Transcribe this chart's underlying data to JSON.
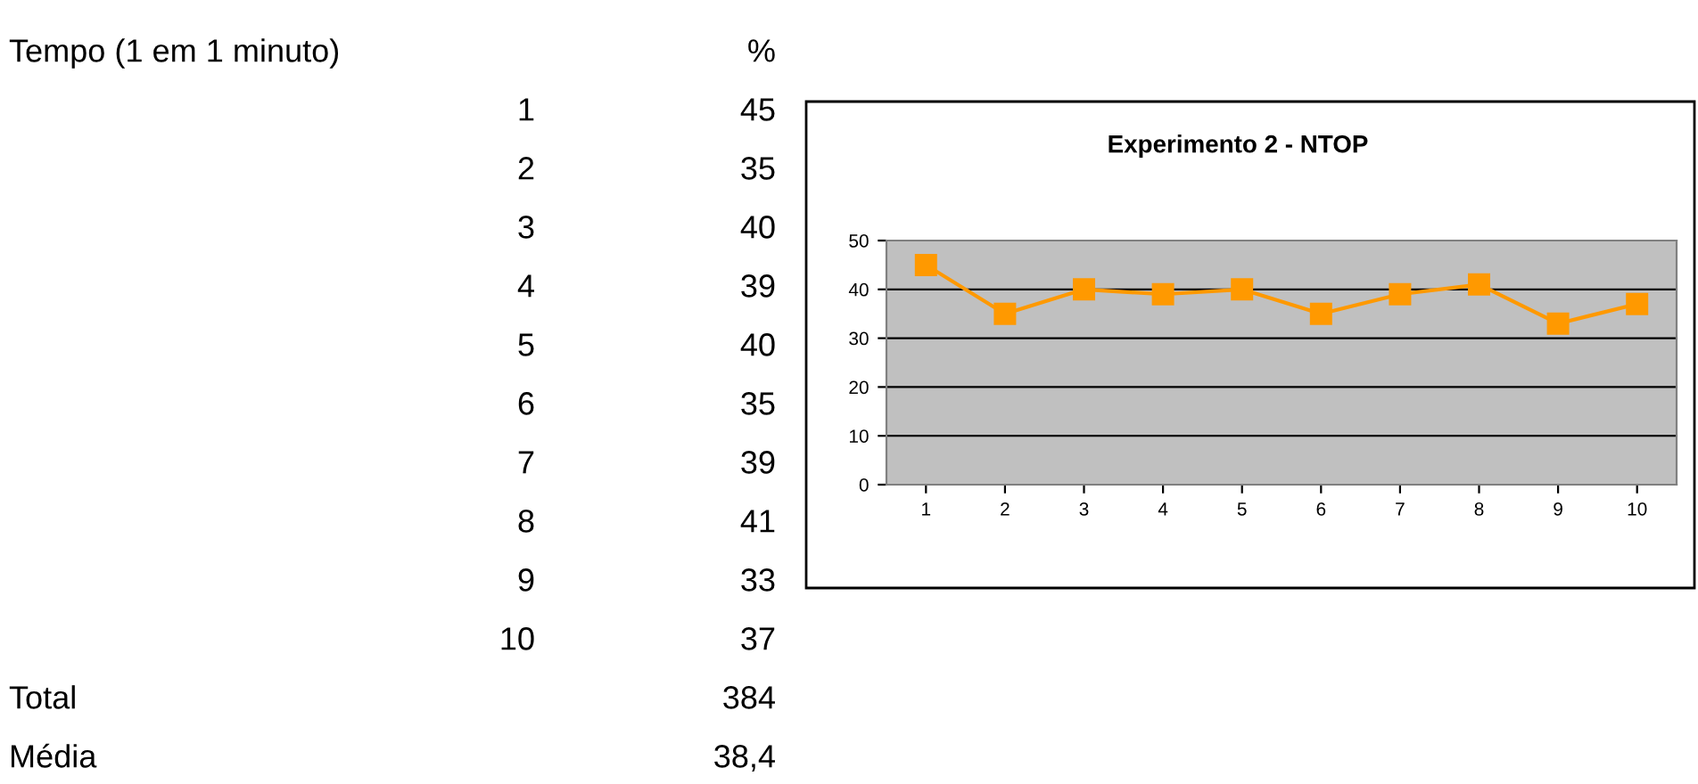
{
  "chart_data": {
    "type": "line",
    "title": "Experimento 2 - NTOP",
    "categories": [
      "1",
      "2",
      "3",
      "4",
      "5",
      "6",
      "7",
      "8",
      "9",
      "10"
    ],
    "series": [
      {
        "color": "#ff9900",
        "values": [
          45,
          35,
          40,
          39,
          40,
          35,
          39,
          41,
          33,
          37
        ]
      }
    ],
    "ylim": [
      0,
      50
    ],
    "yticks": [
      0,
      10,
      20,
      30,
      40,
      50
    ],
    "grid": "y",
    "marker": "square",
    "line_style": "solid",
    "annotations": [
      "Tempo (1 em 1 minuto)",
      "%",
      "45",
      "35",
      "40",
      "39",
      "40",
      "35",
      "39",
      "41",
      "33",
      "37",
      "Total",
      "384",
      "Média",
      "38,4"
    ]
  }
}
